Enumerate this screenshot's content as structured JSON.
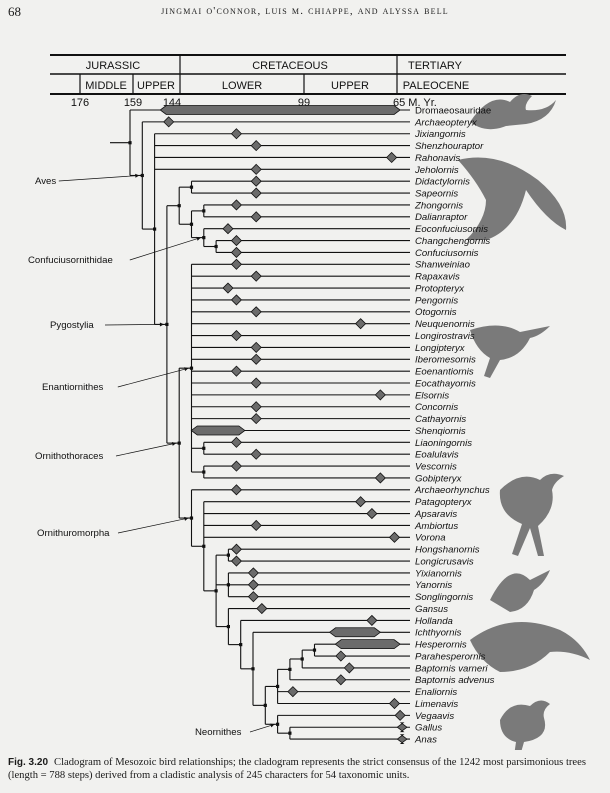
{
  "page": {
    "page_number": "68",
    "running_head": "Jingmai O'Connor, Luis M. Chiappe, and Alyssa Bell"
  },
  "timescale": {
    "periods": [
      "JURASSIC",
      "CRETACEOUS",
      "TERTIARY"
    ],
    "epochs": [
      "MIDDLE",
      "UPPER",
      "LOWER",
      "UPPER",
      "PALEOCENE"
    ],
    "ages": [
      "176",
      "159",
      "144",
      "99",
      "65 M. Yr."
    ]
  },
  "taxa": [
    {
      "name": "Dromaeosauridae",
      "range_ma": [
        151,
        66
      ],
      "upright": true
    },
    {
      "name": "Archaeopteryx",
      "age_ma": 148
    },
    {
      "name": "Jixiangornis",
      "age_ma": 124
    },
    {
      "name": "Shenzhouraptor",
      "age_ma": 117
    },
    {
      "name": "Rahonavis",
      "age_ma": 69
    },
    {
      "name": "Jeholornis",
      "age_ma": 117
    },
    {
      "name": "Didactylornis",
      "age_ma": 117
    },
    {
      "name": "Sapeornis",
      "age_ma": 117
    },
    {
      "name": "Zhongornis",
      "age_ma": 124
    },
    {
      "name": "Dalianraptor",
      "age_ma": 117
    },
    {
      "name": "Eoconfuciusornis",
      "age_ma": 127
    },
    {
      "name": "Changchengornis",
      "age_ma": 124
    },
    {
      "name": "Confuciusornis",
      "age_ma": 124
    },
    {
      "name": "Shanweiniao",
      "age_ma": 124
    },
    {
      "name": "Rapaxavis",
      "age_ma": 117
    },
    {
      "name": "Protopteryx",
      "age_ma": 127
    },
    {
      "name": "Pengornis",
      "age_ma": 124
    },
    {
      "name": "Otogornis",
      "age_ma": 117
    },
    {
      "name": "Neuquenornis",
      "age_ma": 80
    },
    {
      "name": "Longirostravis",
      "age_ma": 124
    },
    {
      "name": "Longipteryx",
      "age_ma": 117
    },
    {
      "name": "Iberomesornis",
      "age_ma": 117
    },
    {
      "name": "Eoenantiornis",
      "age_ma": 124
    },
    {
      "name": "Eocathayornis",
      "age_ma": 117
    },
    {
      "name": "Elsornis",
      "age_ma": 73
    },
    {
      "name": "Concornis",
      "age_ma": 117
    },
    {
      "name": "Cathayornis",
      "age_ma": 117
    },
    {
      "name": "Shenqiornis",
      "range_ma": [
        140,
        121
      ]
    },
    {
      "name": "Liaoningornis",
      "age_ma": 124
    },
    {
      "name": "Eoalulavis",
      "age_ma": 117
    },
    {
      "name": "Vescornis",
      "age_ma": 124
    },
    {
      "name": "Gobipteryx",
      "age_ma": 73
    },
    {
      "name": "Archaeorhynchus",
      "age_ma": 124
    },
    {
      "name": "Patagopteryx",
      "age_ma": 80
    },
    {
      "name": "Apsaravis",
      "age_ma": 76
    },
    {
      "name": "Ambiortus",
      "age_ma": 117
    },
    {
      "name": "Vorona",
      "age_ma": 68
    },
    {
      "name": "Hongshanornis",
      "age_ma": 124
    },
    {
      "name": "Longicrusavis",
      "age_ma": 124
    },
    {
      "name": "Yixianornis",
      "age_ma": 118
    },
    {
      "name": "Yanornis",
      "age_ma": 118
    },
    {
      "name": "Songlingornis",
      "age_ma": 118
    },
    {
      "name": "Gansus",
      "age_ma": 115
    },
    {
      "name": "Hollanda",
      "age_ma": 76
    },
    {
      "name": "Ichthyornis",
      "range_ma": [
        91,
        73
      ]
    },
    {
      "name": "Hesperornis",
      "range_ma": [
        89,
        66
      ]
    },
    {
      "name": "Parahesperornis",
      "age_ma": 87
    },
    {
      "name": "Baptornis varneri",
      "age_ma": 84
    },
    {
      "name": "Baptornis advenus",
      "age_ma": 87
    },
    {
      "name": "Enaliornis",
      "age_ma": 104
    },
    {
      "name": "Limenavis",
      "age_ma": 68
    },
    {
      "name": "Vegaavis",
      "age_ma": 66
    },
    {
      "name": "Gallus",
      "range_ma": [
        67,
        60
      ]
    },
    {
      "name": "Anas",
      "range_ma": [
        67,
        60
      ]
    }
  ],
  "tree": [
    "Dromaeosauridae",
    {
      "label": "Aves",
      "children": [
        "Archaeopteryx",
        [
          "Jixiangornis",
          "Shenzhouraptor",
          "Rahonavis",
          "Jeholornis",
          {
            "label": "Pygostylia",
            "children": [
              [
                [
                  "Didactylornis",
                  "Sapeornis"
                ],
                [
                  [
                    "Zhongornis",
                    "Dalianraptor"
                  ],
                  {
                    "label": "Confuciusornithidae",
                    "children": [
                      "Eoconfuciusornis",
                      [
                        "Changchengornis",
                        "Confuciusornis"
                      ]
                    ]
                  }
                ]
              ],
              {
                "label": "Ornithothoraces",
                "children": [
                  {
                    "label": "Enantiornithes",
                    "children": [
                      "Shanweiniao",
                      "Rapaxavis",
                      "Protopteryx",
                      "Pengornis",
                      "Otogornis",
                      "Neuquenornis",
                      "Longirostravis",
                      "Longipteryx",
                      "Iberomesornis",
                      "Eoenantiornis",
                      "Eocathayornis",
                      "Elsornis",
                      "Concornis",
                      "Cathayornis",
                      "Shenqiornis",
                      [
                        "Liaoningornis",
                        "Eoalulavis"
                      ],
                      [
                        "Vescornis",
                        "Gobipteryx"
                      ]
                    ]
                  },
                  {
                    "label": "Ornithuromorpha",
                    "children": [
                      "Archaeorhynchus",
                      [
                        "Patagopteryx",
                        "Apsaravis",
                        "Ambiortus",
                        "Vorona",
                        [
                          [
                            "Hongshanornis",
                            "Longicrusavis"
                          ],
                          [
                            "Yixianornis",
                            "Yanornis",
                            "Songlingornis"
                          ],
                          [
                            "Gansus",
                            [
                              "Hollanda",
                              [
                                "Ichthyornis",
                                [
                                  [
                                    [
                                      [
                                        [
                                          "Hesperornis",
                                          "Parahesperornis"
                                        ],
                                        "Baptornis varneri"
                                      ],
                                      "Baptornis advenus"
                                    ],
                                    "Enaliornis",
                                    "Limenavis"
                                  ],
                                  {
                                    "label": "Neornithes",
                                    "children": [
                                      "Vegaavis",
                                      [
                                        "Gallus",
                                        "Anas"
                                      ]
                                    ]
                                  }
                                ]
                              ]
                            ]
                          ]
                        ]
                      ]
                    ]
                  }
                ]
              }
            ]
          }
        ]
      ]
    }
  ],
  "colors": {
    "marker_fill": "#6b6b6b",
    "line": "#111111",
    "paper": "#f1f1ef",
    "illustration": "#7a7a7a"
  },
  "caption": {
    "label": "Fig. 3.20",
    "text": "Cladogram of Mesozoic bird relationships; the cladogram represents the strict consensus of the 1242 most parsimonious trees (length = 788 steps) derived from a cladistic analysis of 245 characters for 54 taxonomic units."
  }
}
